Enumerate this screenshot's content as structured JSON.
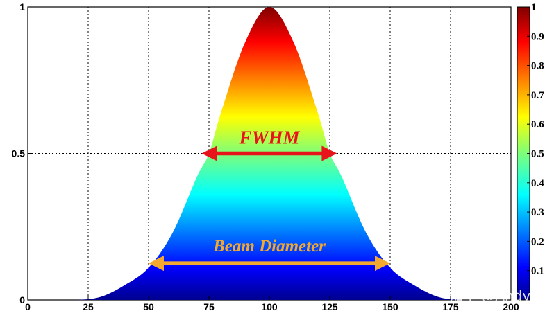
{
  "chart_data": {
    "type": "area",
    "series": [
      {
        "x": [
          0,
          10,
          20,
          30,
          40,
          50,
          60,
          70,
          75,
          80,
          90,
          100,
          110,
          120,
          125,
          130,
          140,
          150,
          160,
          170,
          180,
          190,
          200
        ],
        "y": [
          0.0,
          0.0,
          0.0,
          0.01,
          0.05,
          0.11,
          0.23,
          0.42,
          0.5,
          0.64,
          0.88,
          1.0,
          0.88,
          0.64,
          0.5,
          0.42,
          0.23,
          0.11,
          0.05,
          0.01,
          0.0,
          0.0,
          0.0
        ]
      }
    ],
    "xlim": [
      0,
      200
    ],
    "ylim": [
      0,
      1
    ],
    "x_ticks": [
      "0",
      "25",
      "50",
      "75",
      "100",
      "125",
      "150",
      "175",
      "200"
    ],
    "y_ticks": [
      "0",
      "0.5",
      "1"
    ],
    "grid": true,
    "colormap": "jet",
    "colorbar": {
      "range": [
        0,
        1
      ],
      "ticks": [
        "0.1",
        "0.2",
        "0.3",
        "0.4",
        "0.5",
        "0.6",
        "0.7",
        "0.8",
        "0.9",
        "1"
      ]
    },
    "annotations": [
      {
        "text": "FWHM",
        "x_start": 72,
        "x_end": 128,
        "y": 0.5,
        "color": "#e8141b"
      },
      {
        "text": "Beam Diameter",
        "x_start": 50,
        "x_end": 150,
        "y": 0.125,
        "color": "#f3a930"
      }
    ]
  },
  "watermark": "知乎 @Andy"
}
